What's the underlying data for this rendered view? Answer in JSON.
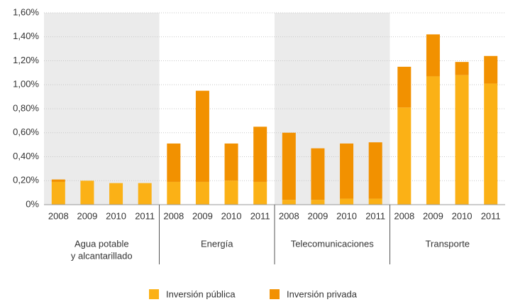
{
  "chart_data": {
    "type": "stacked-bar",
    "categories": [
      "2008",
      "2009",
      "2010",
      "2011",
      "2008",
      "2009",
      "2010",
      "2011",
      "2008",
      "2009",
      "2010",
      "2011",
      "2008",
      "2009",
      "2010",
      "2011"
    ],
    "groups": [
      {
        "label": [
          "Agua potable",
          "y alcantarillado"
        ],
        "shaded": true
      },
      {
        "label": [
          "Energía"
        ],
        "shaded": false
      },
      {
        "label": [
          "Telecomunicaciones"
        ],
        "shaded": true
      },
      {
        "label": [
          "Transporte"
        ],
        "shaded": false
      }
    ],
    "series": [
      {
        "name": "Inversión pública",
        "color": "#fbb116",
        "values": [
          0.19,
          0.2,
          0.18,
          0.18,
          0.19,
          0.19,
          0.2,
          0.19,
          0.04,
          0.04,
          0.05,
          0.05,
          0.81,
          1.07,
          1.08,
          1.01
        ]
      },
      {
        "name": "Inversión privada",
        "color": "#f29100",
        "values": [
          0.02,
          0,
          0,
          0,
          0.32,
          0.76,
          0.31,
          0.46,
          0.56,
          0.43,
          0.46,
          0.47,
          0.34,
          0.35,
          0.11,
          0.23
        ]
      }
    ],
    "ylim": [
      0,
      1.6
    ],
    "yticks": [
      {
        "value": 0,
        "label": "0%"
      },
      {
        "value": 0.2,
        "label": "0,20%"
      },
      {
        "value": 0.4,
        "label": "0,40%"
      },
      {
        "value": 0.6,
        "label": "0,60%"
      },
      {
        "value": 0.8,
        "label": "0,80%"
      },
      {
        "value": 1.0,
        "label": "1,00%"
      },
      {
        "value": 1.2,
        "label": "1,20%"
      },
      {
        "value": 1.4,
        "label": "1,40%"
      },
      {
        "value": 1.6,
        "label": "1,60%"
      }
    ],
    "grid": true,
    "legend": "bottom"
  }
}
